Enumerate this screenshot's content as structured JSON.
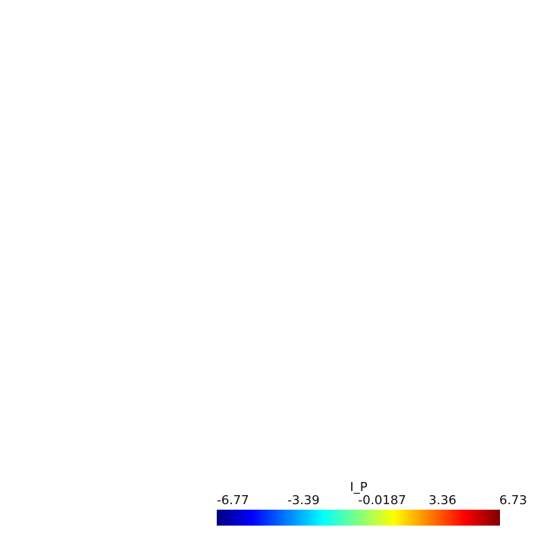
{
  "colorbar": {
    "title": "I_P",
    "ticks": [
      {
        "label": "-6.77",
        "value": -6.77
      },
      {
        "label": "-3.39",
        "value": -3.39
      },
      {
        "label": "-0.0187",
        "value": -0.0187
      },
      {
        "label": "3.36",
        "value": 3.36
      },
      {
        "label": "6.73",
        "value": 6.73
      }
    ],
    "range": [
      -6.77,
      6.73
    ],
    "colormap": "jet",
    "colors": [
      "#00007f",
      "#0000ff",
      "#00ffff",
      "#80ff80",
      "#ffff00",
      "#ff8000",
      "#ff0000",
      "#7f0000"
    ]
  }
}
